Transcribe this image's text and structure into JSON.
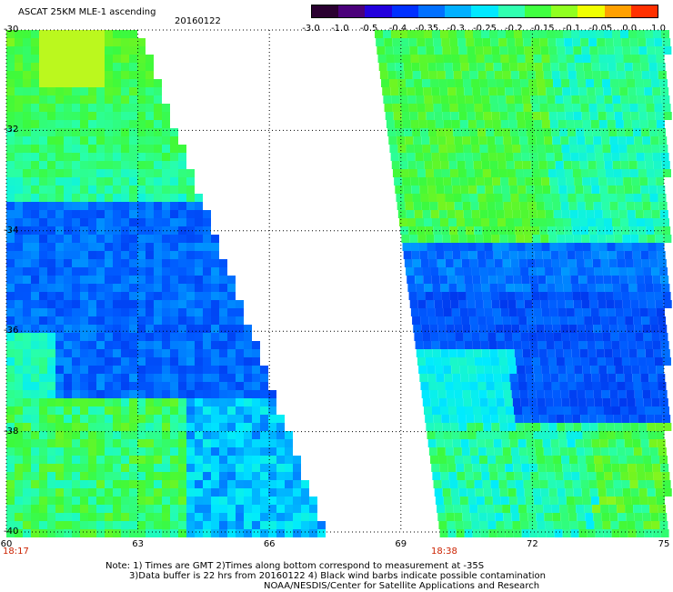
{
  "title": "ASCAT 25KM MLE-1 ascending",
  "date": "20160122",
  "colorbar": {
    "labels": [
      "-3.0",
      "-1.0",
      "-0.5",
      "-0.4",
      "-0.35",
      "-0.3",
      "-0.25",
      "-0.2",
      "-0.15",
      "-0.1",
      "-0.05",
      "0.0",
      "1.0"
    ],
    "colors": [
      "#2a0030",
      "#4a007a",
      "#2200dd",
      "#0030ff",
      "#0070ff",
      "#00b0ff",
      "#00e8ff",
      "#30ffb0",
      "#40ff40",
      "#90ff20",
      "#f0ff00",
      "#ffa000",
      "#ff3000"
    ]
  },
  "axes": {
    "y_ticks": [
      "-30",
      "-32",
      "-34",
      "-36",
      "-38",
      "-40"
    ],
    "x_ticks": [
      "60",
      "63",
      "66",
      "69",
      "72",
      "75"
    ]
  },
  "pass_times": [
    "18:17",
    "18:38"
  ],
  "notes": [
    "Note: 1) Times are GMT 2)Times along bottom correspond to measurement at -35S",
    "3)Data buffer is 22 hrs from 20160122 4) Black wind barbs indicate possible contamination",
    "NOAA/NESDIS/Center for Satellite Applications and Research"
  ]
}
